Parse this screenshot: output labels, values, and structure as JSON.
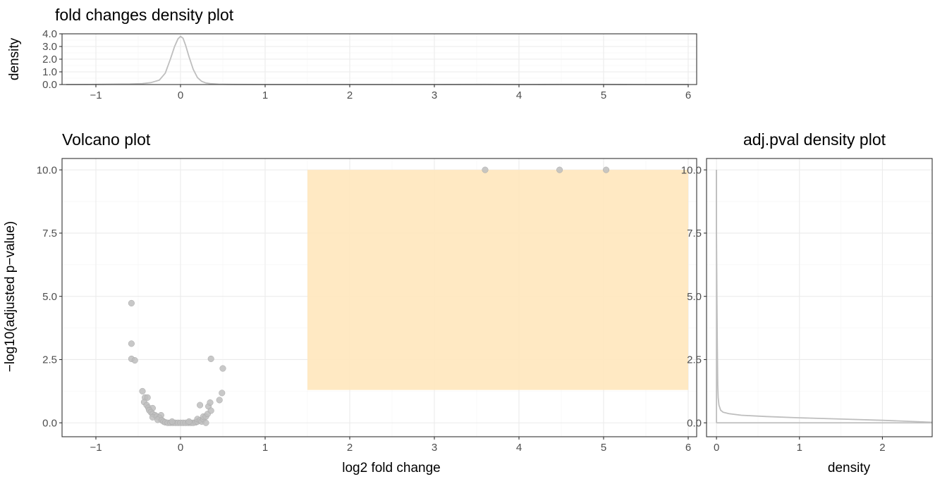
{
  "chart_data": [
    {
      "id": "fc-density",
      "type": "line",
      "title": "fold changes density plot",
      "xlabel": "",
      "ylabel": "density",
      "xlim": [
        -1.4,
        6.1
      ],
      "ylim": [
        0,
        4.0
      ],
      "x_ticks": [
        -1,
        0,
        1,
        2,
        3,
        4,
        5,
        6
      ],
      "x_tick_labels": [
        "−1",
        "0",
        "1",
        "2",
        "3",
        "4",
        "5",
        "6"
      ],
      "y_ticks": [
        0,
        1,
        2,
        3,
        4
      ],
      "y_tick_labels": [
        "0.0",
        "1.0",
        "2.0",
        "3.0",
        "4.0"
      ],
      "grid": true,
      "line_color": "#bebebe",
      "series": [
        {
          "x": [
            -1.35,
            -1.0,
            -0.6,
            -0.45,
            -0.35,
            -0.25,
            -0.18,
            -0.12,
            -0.07,
            -0.03,
            0.0,
            0.03,
            0.06,
            0.1,
            0.15,
            0.2,
            0.25,
            0.3,
            0.35,
            0.45,
            0.6,
            1.0,
            2.0,
            3.0,
            3.6,
            4.0,
            4.5,
            5.0,
            5.5,
            6.0
          ],
          "y": [
            0.0,
            0.01,
            0.04,
            0.07,
            0.15,
            0.35,
            0.9,
            2.0,
            3.0,
            3.6,
            3.8,
            3.65,
            3.1,
            2.2,
            1.2,
            0.55,
            0.25,
            0.12,
            0.07,
            0.03,
            0.01,
            0.0,
            0.0,
            0.0,
            0.01,
            0.0,
            0.01,
            0.01,
            0.0,
            0.0
          ]
        }
      ]
    },
    {
      "id": "volcano",
      "type": "scatter",
      "title": "Volcano plot",
      "xlabel": "log2 fold change",
      "ylabel": "−log10(adjusted p−value)",
      "xlim": [
        -1.4,
        6.1
      ],
      "ylim": [
        -0.55,
        10.45
      ],
      "x_ticks": [
        -1,
        0,
        1,
        2,
        3,
        4,
        5,
        6
      ],
      "x_tick_labels": [
        "−1",
        "0",
        "1",
        "2",
        "3",
        "4",
        "5",
        "6"
      ],
      "y_ticks": [
        0,
        2.5,
        5,
        7.5,
        10
      ],
      "y_tick_labels": [
        "0.0",
        "2.5",
        "5.0",
        "7.5",
        "10.0"
      ],
      "grid": true,
      "point_color": "#bebebe",
      "highlight_region": {
        "x": [
          1.5,
          6.0
        ],
        "y": [
          1.3,
          10.0
        ],
        "color": "#ffe8c0"
      },
      "points": [
        {
          "x": 3.6,
          "y": 10.0
        },
        {
          "x": 4.48,
          "y": 10.0
        },
        {
          "x": 5.03,
          "y": 10.0
        },
        {
          "x": -0.58,
          "y": 4.73
        },
        {
          "x": -0.58,
          "y": 3.13
        },
        {
          "x": -0.58,
          "y": 2.53
        },
        {
          "x": -0.54,
          "y": 2.47
        },
        {
          "x": 0.36,
          "y": 2.53
        },
        {
          "x": 0.5,
          "y": 2.15
        },
        {
          "x": -0.45,
          "y": 1.25
        },
        {
          "x": -0.42,
          "y": 1.0
        },
        {
          "x": -0.39,
          "y": 1.0
        },
        {
          "x": -0.43,
          "y": 0.82
        },
        {
          "x": -0.4,
          "y": 0.7
        },
        {
          "x": -0.38,
          "y": 0.6
        },
        {
          "x": -0.33,
          "y": 0.58
        },
        {
          "x": -0.37,
          "y": 0.5
        },
        {
          "x": -0.35,
          "y": 0.42
        },
        {
          "x": -0.33,
          "y": 0.35
        },
        {
          "x": -0.3,
          "y": 0.3
        },
        {
          "x": -0.33,
          "y": 0.22
        },
        {
          "x": -0.28,
          "y": 0.25
        },
        {
          "x": -0.23,
          "y": 0.3
        },
        {
          "x": -0.25,
          "y": 0.2
        },
        {
          "x": -0.27,
          "y": 0.12
        },
        {
          "x": -0.22,
          "y": 0.1
        },
        {
          "x": -0.2,
          "y": 0.05
        },
        {
          "x": -0.18,
          "y": 0.02
        },
        {
          "x": -0.15,
          "y": 0.0
        },
        {
          "x": -0.12,
          "y": 0.0
        },
        {
          "x": -0.09,
          "y": 0.0
        },
        {
          "x": -0.06,
          "y": 0.0
        },
        {
          "x": -0.03,
          "y": 0.0
        },
        {
          "x": 0.0,
          "y": 0.0
        },
        {
          "x": 0.03,
          "y": 0.0
        },
        {
          "x": 0.06,
          "y": 0.0
        },
        {
          "x": 0.09,
          "y": 0.0
        },
        {
          "x": 0.12,
          "y": 0.0
        },
        {
          "x": 0.15,
          "y": 0.0
        },
        {
          "x": 0.18,
          "y": 0.02
        },
        {
          "x": 0.2,
          "y": 0.05
        },
        {
          "x": 0.2,
          "y": 0.15
        },
        {
          "x": 0.23,
          "y": 0.1
        },
        {
          "x": 0.25,
          "y": 0.05
        },
        {
          "x": 0.27,
          "y": 0.15
        },
        {
          "x": 0.27,
          "y": 0.25
        },
        {
          "x": 0.3,
          "y": 0.25
        },
        {
          "x": 0.32,
          "y": 0.35
        },
        {
          "x": 0.3,
          "y": 0.0
        },
        {
          "x": 0.23,
          "y": 0.7
        },
        {
          "x": 0.33,
          "y": 0.65
        },
        {
          "x": 0.35,
          "y": 0.8
        },
        {
          "x": 0.36,
          "y": 0.48
        },
        {
          "x": 0.46,
          "y": 0.9
        },
        {
          "x": 0.49,
          "y": 1.18
        },
        {
          "x": -0.1,
          "y": 0.05
        },
        {
          "x": 0.1,
          "y": 0.05
        }
      ]
    },
    {
      "id": "pval-density",
      "type": "line",
      "title": "adj.pval density plot",
      "xlabel": "density",
      "ylabel": "",
      "xlim": [
        -0.12,
        2.6
      ],
      "ylim": [
        -0.55,
        10.45
      ],
      "x_ticks": [
        0,
        1,
        2
      ],
      "x_tick_labels": [
        "0",
        "1",
        "2"
      ],
      "y_ticks": [
        0,
        2.5,
        5,
        7.5,
        10
      ],
      "y_tick_labels": [
        "0.0",
        "2.5",
        "5.0",
        "7.5",
        "10.0"
      ],
      "grid": true,
      "line_color": "#bebebe",
      "series": [
        {
          "density": [
            0.0,
            0.0,
            0.005,
            0.01,
            0.015,
            0.02,
            0.03,
            0.05,
            0.08,
            0.15,
            0.3,
            0.6,
            1.0,
            1.5,
            2.0,
            2.4,
            2.6
          ],
          "value": [
            10.0,
            7.5,
            5.0,
            3.0,
            1.5,
            1.0,
            0.7,
            0.5,
            0.42,
            0.36,
            0.3,
            0.25,
            0.2,
            0.15,
            0.1,
            0.05,
            0.02
          ]
        }
      ]
    }
  ]
}
